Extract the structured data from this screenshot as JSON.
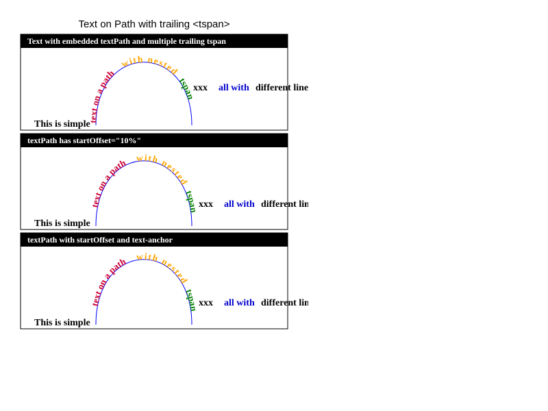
{
  "title": "Text on Path with trailing <tspan>",
  "colors": {
    "path_stroke": "#0000ff",
    "segment_red": "#cc0033",
    "segment_orange": "#ffa500",
    "segment_green": "#008000",
    "blue_text": "#0000cc",
    "header_bg": "#000000"
  },
  "panels": [
    {
      "header": "Text with embedded textPath and multiple trailing tspan",
      "simple": "This is simple",
      "path_text": {
        "part1": "text on a path",
        "part2": "with nested",
        "part3": "tspan"
      },
      "trailing": {
        "xxx": "xxx",
        "blue": "all with",
        "rest": "different line"
      }
    },
    {
      "header": "textPath has startOffset=\"10%\"",
      "simple": "This is simple",
      "path_text": {
        "part1": "text on a path",
        "part2": "with nested",
        "part3": "tspan"
      },
      "trailing": {
        "xxx": "xxx",
        "blue": "all with",
        "rest": "different line"
      }
    },
    {
      "header": "textPath with startOffset and text-anchor",
      "simple": "This is simple",
      "path_text": {
        "part1": "text on a path",
        "part2": "with nested",
        "part3": "tspan"
      },
      "trailing": {
        "xxx": "xxx",
        "blue": "all with",
        "rest": "different line"
      }
    }
  ]
}
